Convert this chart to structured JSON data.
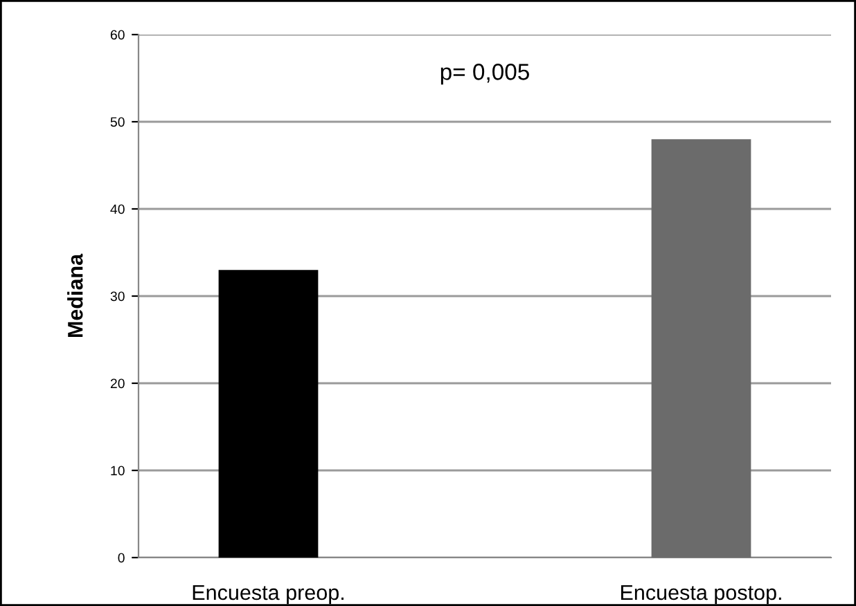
{
  "chart_data": {
    "type": "bar",
    "ylabel": "Mediana",
    "categories": [
      "Encuesta preop.",
      "Encuesta postop."
    ],
    "values": [
      33,
      48
    ],
    "colors": [
      "#000000",
      "#6b6b6b"
    ],
    "ylim": [
      0,
      60
    ],
    "yticks": [
      0,
      10,
      20,
      30,
      40,
      50,
      60
    ],
    "grid": "y",
    "annotations": [
      "p= 0,005"
    ]
  }
}
